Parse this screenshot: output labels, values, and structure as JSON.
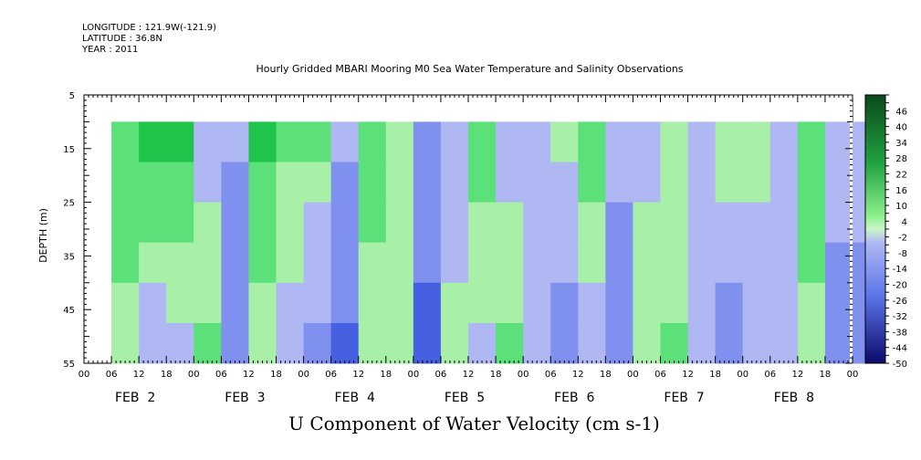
{
  "header": {
    "longitude": "LONGITUDE : 121.9W(-121.9)",
    "latitude": "LATITUDE : 36.8N",
    "year": "YEAR : 2011"
  },
  "chart_data": {
    "type": "heatmap",
    "title": "Hourly Gridded MBARI Mooring M0 Sea Water Temperature and Salinity Observations",
    "xlabel": "U Component of Water Velocity (cm s-1)",
    "ylabel": "DEPTH (m)",
    "y_ticks": [
      5,
      15,
      25,
      35,
      45,
      55
    ],
    "y_range": [
      5,
      55
    ],
    "y_data_range": [
      10,
      55
    ],
    "x_hour_ticks": [
      "00",
      "06",
      "12",
      "18",
      "00",
      "06",
      "12",
      "18",
      "00",
      "06",
      "12",
      "18",
      "00",
      "06",
      "12",
      "18",
      "00",
      "06",
      "12",
      "18",
      "00",
      "06",
      "12",
      "18",
      "00",
      "06",
      "12",
      "18",
      "00"
    ],
    "x_day_labels": [
      "FEB  2",
      "FEB  3",
      "FEB  4",
      "FEB  5",
      "FEB  6",
      "FEB  7",
      "FEB  8"
    ],
    "x_data_start_hour": 6,
    "colorbar_labels": [
      "46",
      "40",
      "34",
      "28",
      "22",
      "16",
      "10",
      "4",
      "-2",
      "-8",
      "-14",
      "-20",
      "-26",
      "-32",
      "-38",
      "-44",
      "-50"
    ],
    "colorbar_range": [
      -50,
      52
    ],
    "colors": {
      "positive_light": "#a8f0a8",
      "positive_mid": "#5ce07a",
      "positive_strong": "#1fc44a",
      "negative_light": "#b0b8f4",
      "negative_mid": "#8090ee",
      "negative_strong": "#4660e2",
      "colorbar_top": "#0a4a1a",
      "colorbar_bottom": "#0a0a6a"
    },
    "columns": [
      {
        "hours": 6,
        "top": 12,
        "bottom": 4
      },
      {
        "hours": 12,
        "top": 14,
        "bottom": -6
      },
      {
        "hours": 18,
        "top": 16,
        "bottom": -4
      },
      {
        "hours": 24,
        "top": -4,
        "bottom": 6
      },
      {
        "hours": 30,
        "top": -10,
        "bottom": -18
      },
      {
        "hours": 36,
        "top": 16,
        "bottom": 2
      },
      {
        "hours": 42,
        "top": 8,
        "bottom": -4
      },
      {
        "hours": 48,
        "top": 6,
        "bottom": -12
      },
      {
        "hours": 54,
        "top": -8,
        "bottom": -20
      },
      {
        "hours": 60,
        "top": 8,
        "bottom": 4
      },
      {
        "hours": 66,
        "top": 4,
        "bottom": 2
      },
      {
        "hours": 72,
        "top": -12,
        "bottom": -20
      },
      {
        "hours": 78,
        "top": -4,
        "bottom": 2
      },
      {
        "hours": 84,
        "top": 10,
        "bottom": -2
      },
      {
        "hours": 90,
        "top": -4,
        "bottom": 6
      },
      {
        "hours": 96,
        "top": -10,
        "bottom": -8
      },
      {
        "hours": 102,
        "top": 2,
        "bottom": -14
      },
      {
        "hours": 108,
        "top": 12,
        "bottom": -6
      },
      {
        "hours": 114,
        "top": -8,
        "bottom": -14
      },
      {
        "hours": 120,
        "top": -2,
        "bottom": 4
      },
      {
        "hours": 126,
        "top": 4,
        "bottom": 6
      },
      {
        "hours": 132,
        "top": -4,
        "bottom": -6
      },
      {
        "hours": 138,
        "top": 4,
        "bottom": -14
      },
      {
        "hours": 144,
        "top": 2,
        "bottom": -4
      },
      {
        "hours": 150,
        "top": -6,
        "bottom": -4
      },
      {
        "hours": 156,
        "top": 12,
        "bottom": 4
      },
      {
        "hours": 162,
        "top": -8,
        "bottom": -12
      },
      {
        "hours": 168,
        "top": -6,
        "bottom": -16
      },
      {
        "hours": 174,
        "top": 6,
        "bottom": 2
      },
      {
        "hours": 180,
        "top": 4,
        "bottom": -6
      },
      {
        "hours": 186,
        "top": -14,
        "bottom": -4
      },
      {
        "hours": 192,
        "top": 2,
        "bottom": 8
      },
      {
        "hours": 198,
        "top": -10,
        "bottom": -20
      },
      {
        "hours": 204,
        "top": 12,
        "bottom": 12
      },
      {
        "hours": 210,
        "top": -4,
        "bottom": -8
      },
      {
        "hours": 216,
        "top": 16,
        "bottom": 2
      },
      {
        "hours": 222,
        "top": -8,
        "bottom": -12
      },
      {
        "hours": 228,
        "top": 4,
        "bottom": 8
      }
    ]
  }
}
